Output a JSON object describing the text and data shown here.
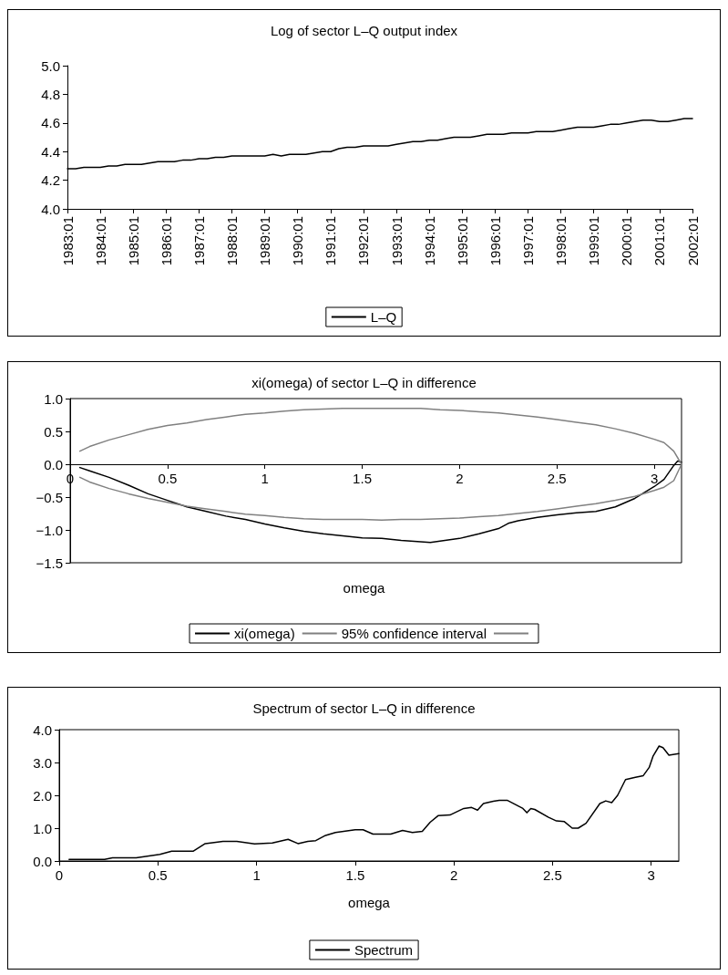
{
  "chart_data": [
    {
      "type": "line",
      "title": "Log of sector L–Q output index",
      "categories": [
        "1983:01",
        null,
        null,
        null,
        "1984:01",
        null,
        null,
        null,
        "1985:01",
        null,
        null,
        null,
        "1986:01",
        null,
        null,
        null,
        "1987:01",
        null,
        null,
        null,
        "1988:01",
        null,
        null,
        null,
        "1989:01",
        null,
        null,
        null,
        "1990:01",
        null,
        null,
        null,
        "1991:01",
        null,
        null,
        null,
        "1992:01",
        null,
        null,
        null,
        "1993:01",
        null,
        null,
        null,
        "1994:01",
        null,
        null,
        null,
        "1995:01",
        null,
        null,
        null,
        "1996:01",
        null,
        null,
        null,
        "1997:01",
        null,
        null,
        null,
        "1998:01",
        null,
        null,
        null,
        "1999:01",
        null,
        null,
        null,
        "2000:01",
        null,
        null,
        null,
        "2001:01",
        null,
        null,
        null,
        "2002:01"
      ],
      "series": [
        {
          "name": "L–Q",
          "color": "#000000",
          "values": [
            4.28,
            4.28,
            4.29,
            4.29,
            4.29,
            4.3,
            4.3,
            4.31,
            4.31,
            4.31,
            4.32,
            4.33,
            4.33,
            4.33,
            4.34,
            4.34,
            4.35,
            4.35,
            4.36,
            4.36,
            4.37,
            4.37,
            4.37,
            4.37,
            4.37,
            4.38,
            4.37,
            4.38,
            4.38,
            4.38,
            4.39,
            4.4,
            4.4,
            4.42,
            4.43,
            4.43,
            4.44,
            4.44,
            4.44,
            4.44,
            4.45,
            4.46,
            4.47,
            4.47,
            4.48,
            4.48,
            4.49,
            4.5,
            4.5,
            4.5,
            4.51,
            4.52,
            4.52,
            4.52,
            4.53,
            4.53,
            4.53,
            4.54,
            4.54,
            4.54,
            4.55,
            4.56,
            4.57,
            4.57,
            4.57,
            4.58,
            4.59,
            4.59,
            4.6,
            4.61,
            4.62,
            4.62,
            4.61,
            4.61,
            4.62,
            4.63,
            4.63
          ]
        }
      ],
      "ylim": [
        4.0,
        5.0
      ],
      "yticks": [
        {
          "value": 4.0,
          "label": "4.0"
        },
        {
          "value": 4.2,
          "label": "4.2"
        },
        {
          "value": 4.4,
          "label": "4.4"
        },
        {
          "value": 4.6,
          "label": "4.6"
        },
        {
          "value": 4.8,
          "label": "4.8"
        },
        {
          "value": 5.0,
          "label": "5.0"
        }
      ],
      "grid": false,
      "legend": "bottom",
      "marker": "none",
      "line_style": "solid"
    },
    {
      "type": "line",
      "title": "xi(omega) of sector L–Q in difference",
      "xlabel": "omega",
      "series": [
        {
          "name": "xi(omega)",
          "color": "#000000",
          "x": [
            0.05,
            0.1,
            0.2,
            0.3,
            0.4,
            0.5,
            0.6,
            0.7,
            0.8,
            0.9,
            1.0,
            1.1,
            1.2,
            1.3,
            1.4,
            1.5,
            1.6,
            1.7,
            1.8,
            1.85,
            1.9,
            2.0,
            2.1,
            2.2,
            2.25,
            2.3,
            2.4,
            2.5,
            2.6,
            2.7,
            2.8,
            2.9,
            3.0,
            3.05,
            3.1,
            3.12,
            3.14
          ],
          "values": [
            -0.05,
            -0.1,
            -0.2,
            -0.32,
            -0.45,
            -0.55,
            -0.65,
            -0.72,
            -0.79,
            -0.84,
            -0.91,
            -0.97,
            -1.02,
            -1.06,
            -1.09,
            -1.12,
            -1.13,
            -1.16,
            -1.18,
            -1.19,
            -1.17,
            -1.13,
            -1.06,
            -0.98,
            -0.9,
            -0.86,
            -0.81,
            -0.77,
            -0.74,
            -0.72,
            -0.65,
            -0.52,
            -0.34,
            -0.23,
            -0.02,
            0.05,
            0.03
          ]
        },
        {
          "name": "95% confidence interval",
          "color": "#808080",
          "x": [
            0.05,
            0.1,
            0.2,
            0.3,
            0.4,
            0.5,
            0.6,
            0.7,
            0.8,
            0.9,
            1.0,
            1.1,
            1.2,
            1.3,
            1.4,
            1.5,
            1.6,
            1.7,
            1.8,
            1.9,
            2.0,
            2.1,
            2.2,
            2.3,
            2.4,
            2.5,
            2.6,
            2.7,
            2.8,
            2.9,
            3.0,
            3.05,
            3.1,
            3.14
          ],
          "values": [
            0.2,
            0.27,
            0.37,
            0.45,
            0.53,
            0.59,
            0.63,
            0.68,
            0.72,
            0.76,
            0.78,
            0.81,
            0.83,
            0.84,
            0.85,
            0.85,
            0.85,
            0.85,
            0.85,
            0.83,
            0.82,
            0.8,
            0.78,
            0.75,
            0.72,
            0.68,
            0.64,
            0.6,
            0.54,
            0.47,
            0.38,
            0.33,
            0.2,
            0.0
          ]
        },
        {
          "color": "#808080",
          "x": [
            0.05,
            0.1,
            0.2,
            0.3,
            0.4,
            0.5,
            0.6,
            0.7,
            0.8,
            0.9,
            1.0,
            1.1,
            1.2,
            1.3,
            1.4,
            1.5,
            1.6,
            1.7,
            1.8,
            1.9,
            2.0,
            2.1,
            2.2,
            2.3,
            2.4,
            2.5,
            2.6,
            2.7,
            2.8,
            2.9,
            3.0,
            3.05,
            3.1,
            3.14
          ],
          "values": [
            -0.2,
            -0.27,
            -0.37,
            -0.45,
            -0.52,
            -0.58,
            -0.64,
            -0.68,
            -0.72,
            -0.76,
            -0.78,
            -0.81,
            -0.83,
            -0.84,
            -0.84,
            -0.84,
            -0.85,
            -0.84,
            -0.84,
            -0.83,
            -0.82,
            -0.8,
            -0.78,
            -0.75,
            -0.72,
            -0.68,
            -0.64,
            -0.6,
            -0.55,
            -0.49,
            -0.4,
            -0.35,
            -0.25,
            0.0
          ]
        }
      ],
      "xlim": [
        0,
        3.14
      ],
      "xticks": [
        0,
        0.5,
        1,
        1.5,
        2,
        2.5,
        3
      ],
      "ylim": [
        -1.5,
        1.0
      ],
      "yticks": [
        {
          "value": -1.5,
          "label": "−1.5"
        },
        {
          "value": -1.0,
          "label": "−1.0"
        },
        {
          "value": -0.5,
          "label": "−0.5"
        },
        {
          "value": 0,
          "label": "0.0"
        },
        {
          "value": 0.5,
          "label": "0.5"
        },
        {
          "value": 1.0,
          "label": "1.0"
        }
      ],
      "grid": false,
      "legend": "bottom",
      "marker": "none",
      "line_style": "solid"
    },
    {
      "type": "line",
      "title": "Spectrum of sector L–Q in difference",
      "xlabel": "omega",
      "series": [
        {
          "name": "Spectrum",
          "color": "#000000",
          "x": [
            0.05,
            0.23,
            0.27,
            0.39,
            0.51,
            0.57,
            0.68,
            0.74,
            0.83,
            0.9,
            0.99,
            1.08,
            1.16,
            1.21,
            1.26,
            1.3,
            1.35,
            1.4,
            1.5,
            1.54,
            1.59,
            1.68,
            1.74,
            1.79,
            1.84,
            1.88,
            1.92,
            1.98,
            2.05,
            2.09,
            2.12,
            2.15,
            2.2,
            2.23,
            2.27,
            2.35,
            2.37,
            2.39,
            2.41,
            2.48,
            2.52,
            2.56,
            2.6,
            2.63,
            2.67,
            2.74,
            2.77,
            2.8,
            2.83,
            2.87,
            2.92,
            2.96,
            2.99,
            3.01,
            3.04,
            3.06,
            3.09,
            3.14
          ],
          "values": [
            0.05,
            0.05,
            0.1,
            0.1,
            0.2,
            0.3,
            0.3,
            0.53,
            0.6,
            0.6,
            0.52,
            0.55,
            0.66,
            0.53,
            0.6,
            0.62,
            0.78,
            0.87,
            0.95,
            0.95,
            0.82,
            0.82,
            0.93,
            0.87,
            0.9,
            1.18,
            1.38,
            1.4,
            1.6,
            1.63,
            1.55,
            1.75,
            1.82,
            1.85,
            1.85,
            1.6,
            1.47,
            1.6,
            1.57,
            1.33,
            1.22,
            1.2,
            1.0,
            1.0,
            1.15,
            1.75,
            1.83,
            1.78,
            2.0,
            2.48,
            2.55,
            2.6,
            2.85,
            3.2,
            3.5,
            3.45,
            3.22,
            3.27
          ]
        }
      ],
      "xlim": [
        0,
        3.14
      ],
      "xticks": [
        0,
        0.5,
        1,
        1.5,
        2,
        2.5,
        3
      ],
      "ylim": [
        0,
        4.0
      ],
      "yticks": [
        {
          "value": 0,
          "label": "0.0"
        },
        {
          "value": 1.0,
          "label": "1.0"
        },
        {
          "value": 2.0,
          "label": "2.0"
        },
        {
          "value": 3.0,
          "label": "3.0"
        },
        {
          "value": 4.0,
          "label": "4.0"
        }
      ],
      "grid": false,
      "legend": "bottom",
      "marker": "none",
      "line_style": "solid"
    }
  ]
}
